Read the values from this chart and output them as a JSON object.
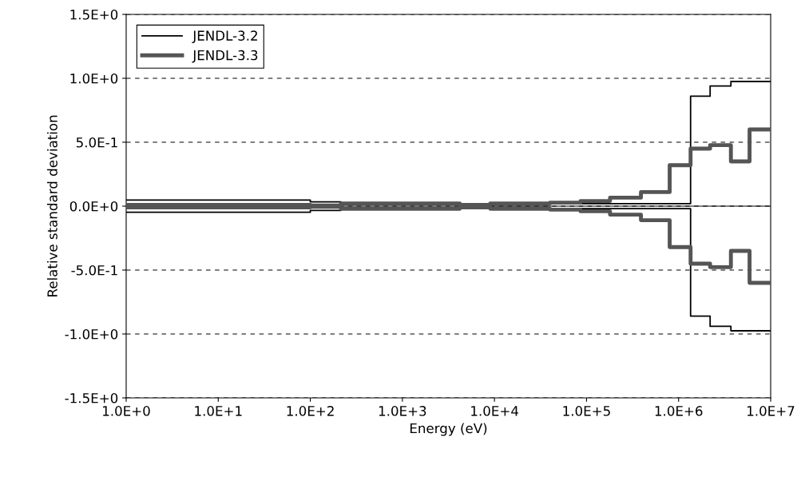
{
  "chart_data": {
    "type": "step",
    "xlabel": "Energy (eV)",
    "ylabel": "Relative standard deviation",
    "log": "x",
    "xlim": [
      1,
      10000000
    ],
    "ylim": [
      -1.5,
      1.5
    ],
    "xticks": [
      {
        "value": 1,
        "label": "1.0E+0"
      },
      {
        "value": 10,
        "label": "1.0E+1"
      },
      {
        "value": 100,
        "label": "1.0E+2"
      },
      {
        "value": 1000,
        "label": "1.0E+3"
      },
      {
        "value": 10000,
        "label": "1.0E+4"
      },
      {
        "value": 100000,
        "label": "1.0E+5"
      },
      {
        "value": 1000000,
        "label": "1.0E+6"
      },
      {
        "value": 10000000,
        "label": "1.0E+7"
      }
    ],
    "yticks": [
      {
        "value": -1.5,
        "label": "-1.5E+0"
      },
      {
        "value": -1.0,
        "label": "-1.0E+0"
      },
      {
        "value": -0.5,
        "label": "-5.0E-1"
      },
      {
        "value": 0,
        "label": "0.0E+0"
      },
      {
        "value": 0.5,
        "label": "5.0E-1"
      },
      {
        "value": 1.0,
        "label": "1.0E+0"
      },
      {
        "value": 1.5,
        "label": "1.5E+0"
      }
    ],
    "grid": "y",
    "legend": "top left",
    "ref_lines": [
      {
        "axis": "y",
        "value": 0,
        "color": "#000000",
        "line_style": "solid"
      }
    ],
    "series": [
      {
        "name": "JENDL-3.2",
        "color": "#000000",
        "x": [
          1,
          100,
          215,
          4200,
          9000,
          40000,
          1350000,
          2200000,
          3700000,
          10000000
        ],
        "values": [
          0.048,
          0.033,
          0.018,
          0.005,
          0.01,
          0.02,
          0.86,
          0.94,
          0.975,
          0.975
        ]
      },
      {
        "color": "#000000",
        "x": [
          1,
          100,
          215,
          4200,
          9000,
          40000,
          1350000,
          2200000,
          3700000,
          10000000
        ],
        "values": [
          -0.048,
          -0.033,
          -0.018,
          -0.005,
          -0.01,
          -0.02,
          -0.86,
          -0.94,
          -0.975,
          -0.975
        ]
      },
      {
        "name": "JENDL-3.3",
        "color": "#555555",
        "x": [
          1,
          100,
          215,
          4200,
          9000,
          40000,
          86000,
          180000,
          390000,
          800000,
          1350000,
          2200000,
          3700000,
          5900000,
          10000000
        ],
        "values": [
          0.01,
          0.005,
          0.02,
          0.01,
          0.02,
          0.027,
          0.04,
          0.066,
          0.11,
          0.32,
          0.45,
          0.477,
          0.35,
          0.6,
          0.6
        ]
      },
      {
        "color": "#555555",
        "x": [
          1,
          100,
          215,
          4200,
          9000,
          40000,
          86000,
          180000,
          390000,
          800000,
          1350000,
          2200000,
          3700000,
          5900000,
          10000000
        ],
        "values": [
          -0.01,
          -0.005,
          -0.02,
          -0.01,
          -0.02,
          -0.027,
          -0.04,
          -0.066,
          -0.11,
          -0.32,
          -0.45,
          -0.477,
          -0.35,
          -0.6,
          -0.6
        ]
      }
    ]
  }
}
